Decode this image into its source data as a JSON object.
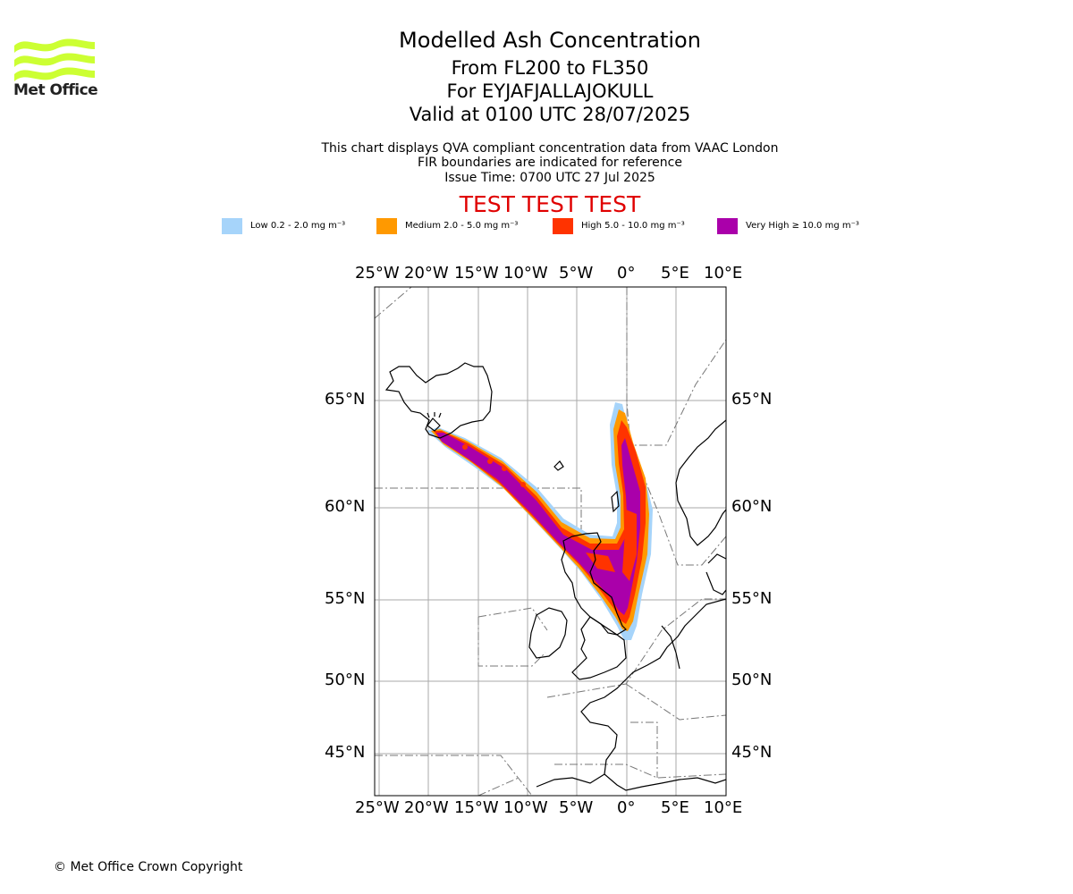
{
  "brand": {
    "name": "Met Office",
    "logo_color": "#ccff33"
  },
  "header": {
    "title": "Modelled Ash Concentration",
    "level": "From FL200 to FL350",
    "volcano": "For EYJAFJALLAJOKULL",
    "valid": "Valid at 0100 UTC 28/07/2025",
    "desc1": "This chart displays QVA compliant concentration data from VAAC London",
    "desc2": "FIR boundaries are indicated for reference",
    "issue": "Issue Time: 0700 UTC 27 Jul 2025",
    "test_banner": "TEST TEST TEST"
  },
  "legend": [
    {
      "label": "Low 0.2 - 2.0 mg m⁻³",
      "color": "#a6d4fa"
    },
    {
      "label": "Medium 2.0 - 5.0 mg m⁻³",
      "color": "#ff9900"
    },
    {
      "label": "High 5.0 - 10.0 mg m⁻³",
      "color": "#ff3300"
    },
    {
      "label": "Very High ≥ 10.0 mg m⁻³",
      "color": "#aa00aa"
    }
  ],
  "map": {
    "lon_labels": [
      "25°W",
      "20°W",
      "15°W",
      "10°W",
      "5°W",
      "0°",
      "5°E",
      "10°E"
    ],
    "lat_labels": [
      "65°N",
      "60°N",
      "55°N",
      "50°N",
      "45°N"
    ],
    "lon_range": [
      -25.5,
      10.0
    ],
    "lat_range": [
      43.0,
      69.5
    ],
    "grid": true,
    "volcano_marker": {
      "lon": -19.6,
      "lat": 63.6
    }
  },
  "footer": {
    "copyright": "© Met Office Crown Copyright"
  }
}
